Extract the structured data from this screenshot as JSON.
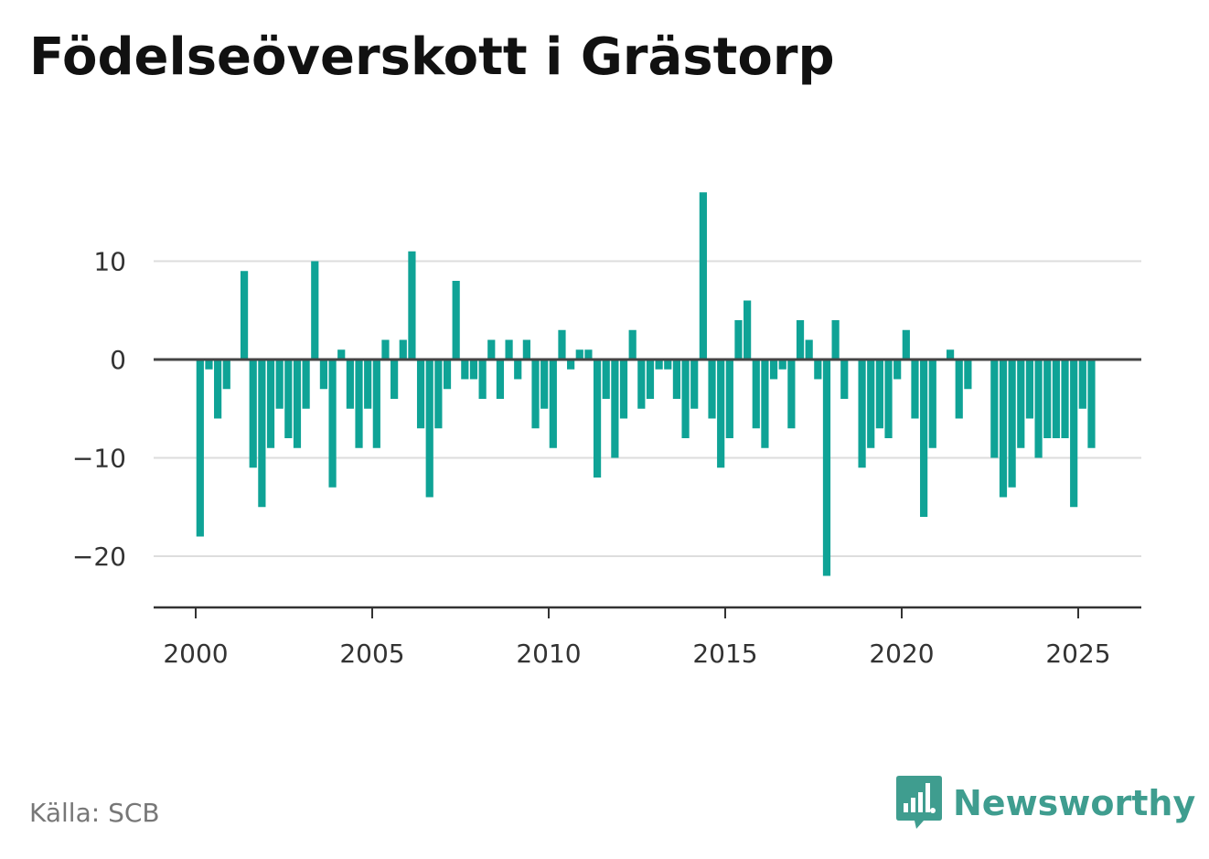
{
  "title": "Födelseöverskott i Grästorp",
  "source": "Källa: SCB",
  "brand": {
    "name": "Newsworthy",
    "icon": "newsworthy-logo-icon",
    "color": "#3f9d8f"
  },
  "colors": {
    "bar": "#0fa396",
    "grid": "#dddddd",
    "zero_line": "#444444",
    "axis": "#333333"
  },
  "chart_data": {
    "type": "bar",
    "title": "Födelseöverskott i Grästorp",
    "xlabel": "",
    "ylabel": "",
    "ylim": [
      -25,
      20
    ],
    "grid": true,
    "x_ticks": [
      "2000",
      "2005",
      "2010",
      "2015",
      "2020",
      "2025"
    ],
    "y_ticks": [
      "10",
      "0",
      "−10",
      "−20"
    ],
    "period": "quarterly, 2000 Q1 – 2025 Q2",
    "values": [
      -18,
      -1,
      -6,
      -3,
      0,
      9,
      -11,
      -15,
      -9,
      -5,
      -8,
      -9,
      -5,
      10,
      -3,
      -13,
      1,
      -5,
      -9,
      -5,
      -9,
      2,
      -4,
      2,
      11,
      -7,
      -14,
      -7,
      -3,
      8,
      -2,
      -2,
      -4,
      2,
      -4,
      2,
      -2,
      2,
      -7,
      -5,
      -9,
      3,
      -1,
      1,
      1,
      -12,
      -4,
      -10,
      -6,
      3,
      -5,
      -4,
      -1,
      -1,
      -4,
      -8,
      -5,
      17,
      -6,
      -11,
      -8,
      4,
      6,
      -7,
      -9,
      -2,
      -1,
      -7,
      4,
      2,
      -2,
      -22,
      4,
      -4,
      0,
      -11,
      -9,
      -7,
      -8,
      -2,
      3,
      -6,
      -16,
      -9,
      0,
      1,
      -6,
      -3,
      0,
      0,
      -10,
      -14,
      -13,
      -9,
      -6,
      -10,
      -8,
      -8,
      -8,
      -15,
      -5,
      -9
    ]
  }
}
